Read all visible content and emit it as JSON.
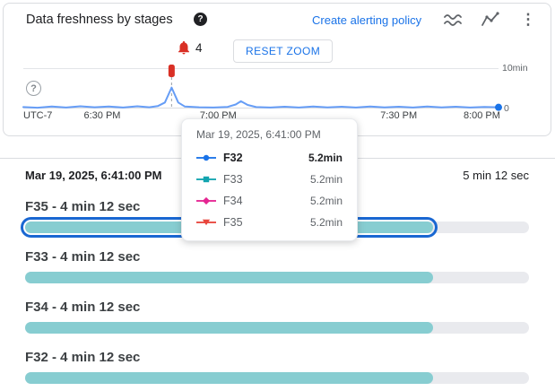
{
  "header": {
    "title": "Data freshness by stages",
    "help": "?",
    "create_alerting_policy": "Create alerting policy",
    "icons": [
      "stacked-area-chart-icon",
      "line-chart-icon",
      "more-options-icon"
    ]
  },
  "chart": {
    "alert_count": "4",
    "reset_zoom": "RESET ZOOM",
    "y_max_label": "10min",
    "y_min_label": "0",
    "help": "?"
  },
  "chart_data": {
    "type": "line",
    "title": "Data freshness by stages",
    "y_unit": "min",
    "y_max": 10,
    "y_axis_labels": [
      "10min",
      "0"
    ],
    "marker_pos": 0.312,
    "marker_time": "Mar 19, 2025, 6:41:00 PM",
    "peak_value_min": 5.2,
    "x_ticks": [
      {
        "label": "UTC-7",
        "pos": 0
      },
      {
        "label": "6:30 PM",
        "pos": 0.166
      },
      {
        "label": "7:00 PM",
        "pos": 0.41
      },
      {
        "label": "7:30 PM",
        "pos": 0.79
      },
      {
        "label": "8:00 PM",
        "pos": 0.965
      }
    ],
    "points": [
      [
        0.0,
        0.35
      ],
      [
        0.03,
        0.2
      ],
      [
        0.06,
        0.5
      ],
      [
        0.09,
        0.25
      ],
      [
        0.12,
        0.55
      ],
      [
        0.15,
        0.3
      ],
      [
        0.18,
        0.5
      ],
      [
        0.21,
        0.25
      ],
      [
        0.24,
        0.55
      ],
      [
        0.265,
        0.3
      ],
      [
        0.283,
        0.6
      ],
      [
        0.298,
        1.5
      ],
      [
        0.312,
        5.2
      ],
      [
        0.326,
        1.5
      ],
      [
        0.34,
        0.5
      ],
      [
        0.37,
        0.3
      ],
      [
        0.4,
        0.25
      ],
      [
        0.43,
        0.4
      ],
      [
        0.447,
        1.0
      ],
      [
        0.458,
        1.8
      ],
      [
        0.472,
        0.9
      ],
      [
        0.49,
        0.35
      ],
      [
        0.52,
        0.25
      ],
      [
        0.55,
        0.45
      ],
      [
        0.58,
        0.25
      ],
      [
        0.61,
        0.5
      ],
      [
        0.64,
        0.28
      ],
      [
        0.67,
        0.45
      ],
      [
        0.7,
        0.25
      ],
      [
        0.73,
        0.5
      ],
      [
        0.76,
        0.28
      ],
      [
        0.79,
        0.45
      ],
      [
        0.82,
        0.25
      ],
      [
        0.85,
        0.5
      ],
      [
        0.88,
        0.28
      ],
      [
        0.91,
        0.45
      ],
      [
        0.94,
        0.25
      ],
      [
        0.97,
        0.4
      ],
      [
        1.0,
        0.3
      ]
    ]
  },
  "tooltip": {
    "title": "Mar 19, 2025, 6:41:00 PM",
    "rows": [
      {
        "name": "F32",
        "value": "5.2min",
        "color": "#1a73e8",
        "marker": "circle"
      },
      {
        "name": "F33",
        "value": "5.2min",
        "color": "#12a4af",
        "marker": "square"
      },
      {
        "name": "F34",
        "value": "5.2min",
        "color": "#e52592",
        "marker": "diamond"
      },
      {
        "name": "F35",
        "value": "5.2min",
        "color": "#e8453c",
        "marker": "triangle-down"
      }
    ]
  },
  "stages": {
    "timestamp": "Mar 19, 2025, 6:41:00 PM",
    "total_duration": "5 min 12 sec",
    "bars": [
      {
        "label": "F35 - 4 min 12 sec",
        "fill_pct": 81,
        "selected": true
      },
      {
        "label": "F33 - 4 min 12 sec",
        "fill_pct": 81,
        "selected": false
      },
      {
        "label": "F34 - 4 min 12 sec",
        "fill_pct": 81,
        "selected": false
      },
      {
        "label": "F32 - 4 min 12 sec",
        "fill_pct": 81,
        "selected": false
      }
    ]
  },
  "colors": {
    "link": "#1a73e8",
    "line": "#669df6",
    "alert": "#d93025",
    "bar_fill": "#87cdd1",
    "bar_track": "#e9eaee",
    "selection": "#1967d2"
  }
}
